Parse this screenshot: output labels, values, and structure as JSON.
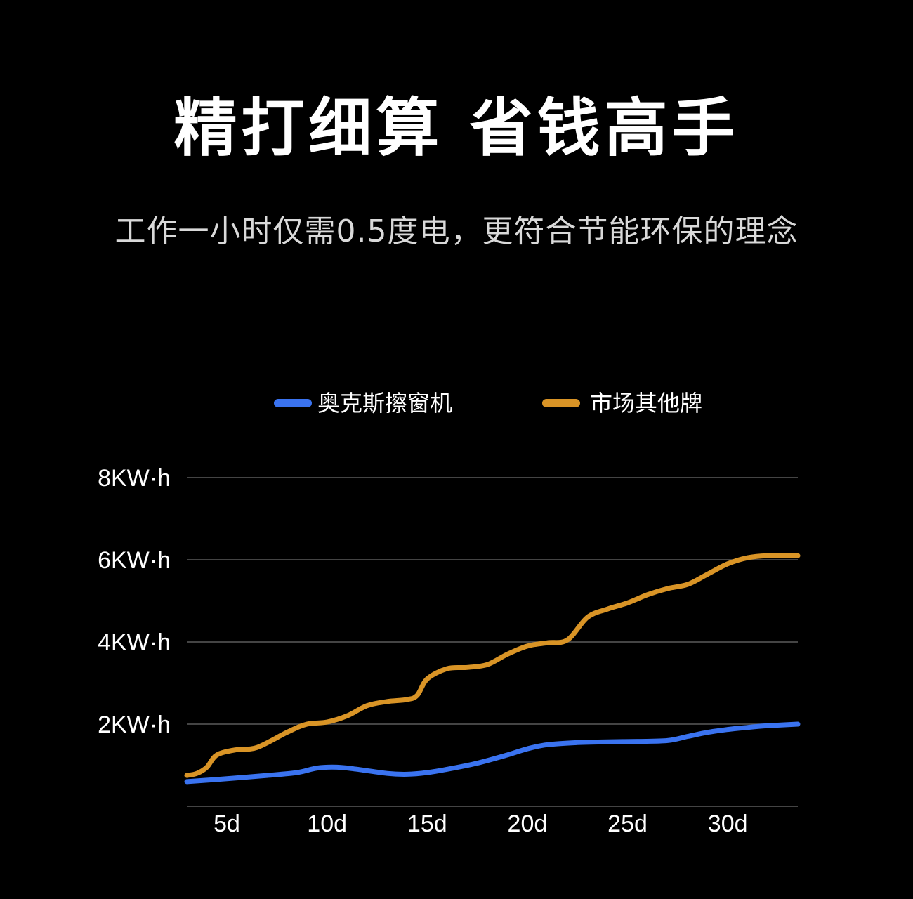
{
  "header": {
    "title": "精打细算 省钱高手",
    "subtitle": "工作一小时仅需0.5度电，更符合节能环保的理念"
  },
  "chart_data": {
    "type": "line",
    "title": "",
    "xlabel": "",
    "ylabel": "",
    "x_ticks": [
      "5d",
      "10d",
      "15d",
      "20d",
      "25d",
      "30d"
    ],
    "y_ticks": [
      "8KW·h",
      "6KW·h",
      "4KW·h",
      "2KW·h"
    ],
    "xlim": [
      3,
      33.5
    ],
    "ylim": [
      0,
      8
    ],
    "grid": true,
    "legend_position": "top",
    "series": [
      {
        "name": "奥克斯擦窗机",
        "color": "#3a73f0",
        "points": [
          [
            3,
            0.6
          ],
          [
            5,
            0.67
          ],
          [
            7,
            0.75
          ],
          [
            8.5,
            0.82
          ],
          [
            9.5,
            0.93
          ],
          [
            10.5,
            0.95
          ],
          [
            11.5,
            0.9
          ],
          [
            13,
            0.8
          ],
          [
            14,
            0.78
          ],
          [
            15,
            0.82
          ],
          [
            16,
            0.9
          ],
          [
            17.5,
            1.05
          ],
          [
            19,
            1.25
          ],
          [
            20,
            1.4
          ],
          [
            21,
            1.5
          ],
          [
            22.5,
            1.55
          ],
          [
            24,
            1.57
          ],
          [
            25.5,
            1.58
          ],
          [
            27,
            1.6
          ],
          [
            28,
            1.7
          ],
          [
            29,
            1.8
          ],
          [
            30,
            1.87
          ],
          [
            31,
            1.92
          ],
          [
            32,
            1.96
          ],
          [
            33.5,
            2.0
          ]
        ]
      },
      {
        "name": "市场其他牌",
        "color": "#d99426",
        "points": [
          [
            3,
            0.75
          ],
          [
            3.5,
            0.8
          ],
          [
            4,
            0.95
          ],
          [
            4.5,
            1.25
          ],
          [
            5.5,
            1.38
          ],
          [
            6.5,
            1.43
          ],
          [
            8,
            1.8
          ],
          [
            9,
            2.0
          ],
          [
            10,
            2.05
          ],
          [
            11,
            2.2
          ],
          [
            12,
            2.45
          ],
          [
            13,
            2.55
          ],
          [
            14,
            2.6
          ],
          [
            14.5,
            2.7
          ],
          [
            15,
            3.1
          ],
          [
            16,
            3.35
          ],
          [
            17,
            3.38
          ],
          [
            18,
            3.45
          ],
          [
            19,
            3.7
          ],
          [
            20,
            3.9
          ],
          [
            21,
            3.98
          ],
          [
            22,
            4.05
          ],
          [
            23,
            4.6
          ],
          [
            24,
            4.8
          ],
          [
            25,
            4.95
          ],
          [
            26,
            5.15
          ],
          [
            27,
            5.3
          ],
          [
            28,
            5.4
          ],
          [
            29,
            5.65
          ],
          [
            30,
            5.9
          ],
          [
            31,
            6.05
          ],
          [
            32,
            6.1
          ],
          [
            33.5,
            6.1
          ]
        ]
      }
    ]
  },
  "colors": {
    "background": "#000000",
    "grid": "#5a5a5a",
    "text": "#ffffff",
    "subtitle": "#d9d9d9"
  }
}
